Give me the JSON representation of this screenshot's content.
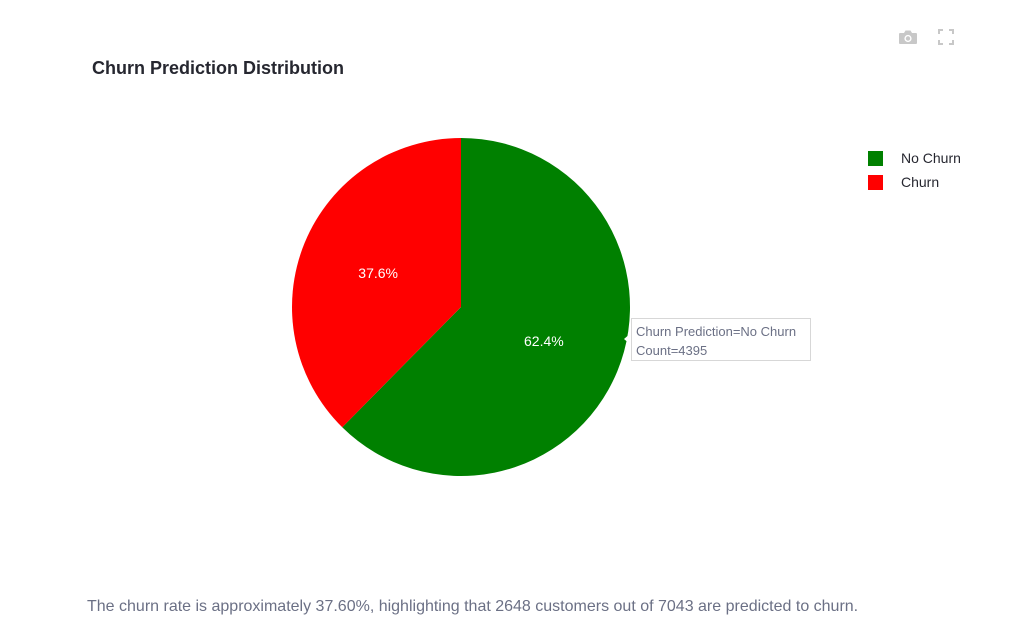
{
  "title": "Churn Prediction Distribution",
  "toolbar": {
    "camera_icon": "camera-icon",
    "fullscreen_icon": "fullscreen-icon"
  },
  "chart_data": {
    "type": "pie",
    "title": "Churn Prediction Distribution",
    "categories": [
      "No Churn",
      "Churn"
    ],
    "values": [
      4395,
      2648
    ],
    "percent_labels": [
      "62.4%",
      "37.6%"
    ],
    "colors": [
      "#008000",
      "#ff0000"
    ],
    "legend": [
      "No Churn",
      "Churn"
    ],
    "legend_position": "top-right"
  },
  "tooltip": {
    "line1": "Churn Prediction=No Churn",
    "line2": "Count=4395"
  },
  "caption": "The churn rate is approximately 37.60%, highlighting that 2648 customers out of 7043 are predicted to churn."
}
